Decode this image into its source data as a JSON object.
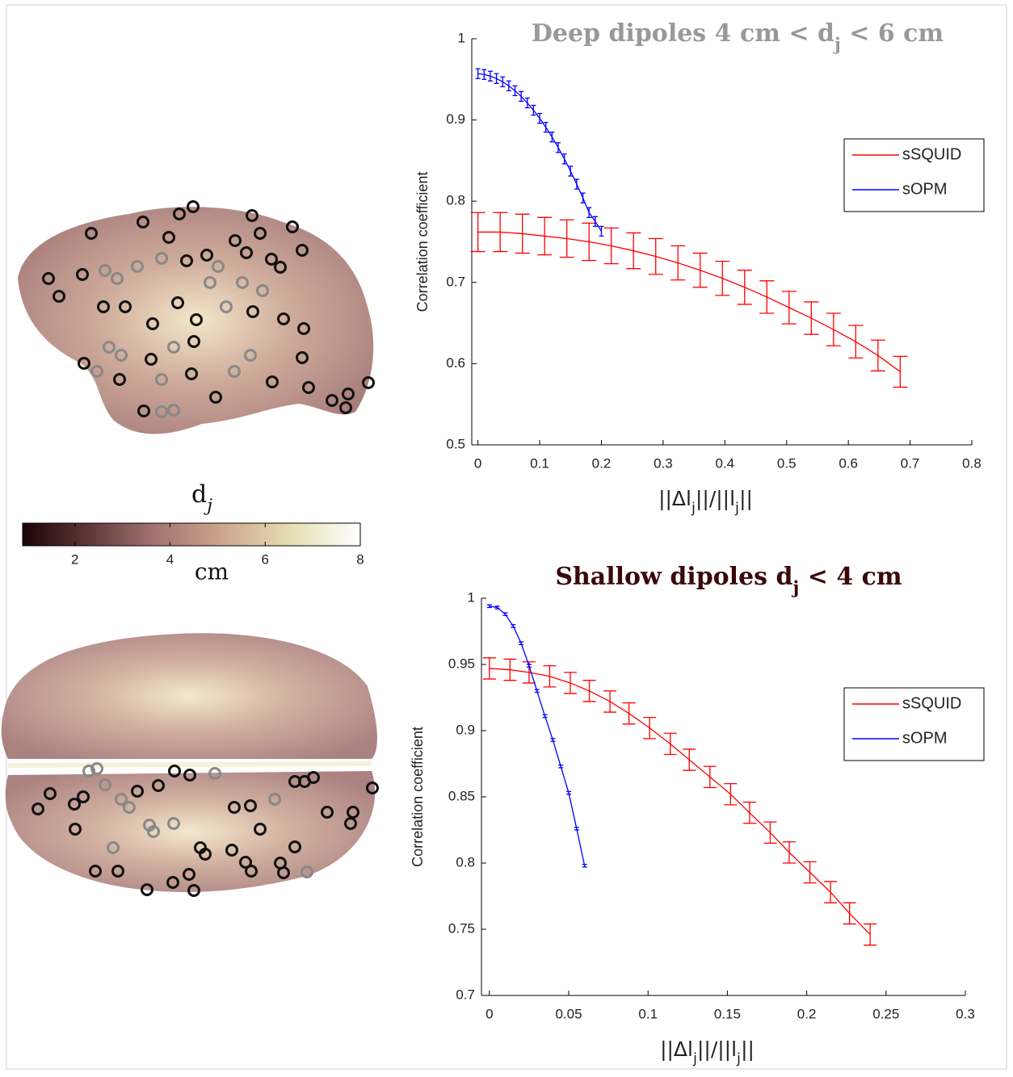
{
  "chart_data": [
    {
      "type": "line",
      "title": [
        "Deep dipoles 4 cm < d",
        "j",
        " < 6 cm"
      ],
      "title_color": "#999999",
      "xlabel": [
        "||Δl",
        "j",
        "||/||l",
        "j",
        "||"
      ],
      "ylabel": "Correlation coefficient",
      "xlim": [
        -0.01,
        0.8
      ],
      "ylim": [
        0.5,
        1
      ],
      "xticks": [
        0,
        0.1,
        0.2,
        0.3,
        0.4,
        0.5,
        0.6,
        0.7,
        0.8
      ],
      "yticks": [
        0.5,
        0.6,
        0.7,
        0.8,
        0.9,
        1
      ],
      "legend": "upper right",
      "series": [
        {
          "name": "sSQUID",
          "color": "#ff0000",
          "x": [
            0,
            0.036,
            0.072,
            0.108,
            0.144,
            0.18,
            0.216,
            0.252,
            0.288,
            0.324,
            0.36,
            0.396,
            0.432,
            0.468,
            0.504,
            0.54,
            0.576,
            0.612,
            0.648,
            0.684
          ],
          "values": [
            0.762,
            0.762,
            0.76,
            0.757,
            0.754,
            0.75,
            0.745,
            0.739,
            0.732,
            0.724,
            0.715,
            0.705,
            0.694,
            0.682,
            0.669,
            0.656,
            0.642,
            0.627,
            0.61,
            0.59
          ],
          "errors": [
            0.024,
            0.024,
            0.024,
            0.023,
            0.023,
            0.023,
            0.022,
            0.022,
            0.022,
            0.021,
            0.021,
            0.021,
            0.021,
            0.02,
            0.02,
            0.02,
            0.02,
            0.02,
            0.019,
            0.019
          ]
        },
        {
          "name": "sOPM",
          "color": "#0000ff",
          "x": [
            0,
            0.01,
            0.02,
            0.03,
            0.04,
            0.05,
            0.06,
            0.07,
            0.08,
            0.09,
            0.1,
            0.11,
            0.12,
            0.13,
            0.14,
            0.15,
            0.16,
            0.17,
            0.18,
            0.19,
            0.2
          ],
          "values": [
            0.957,
            0.956,
            0.954,
            0.951,
            0.947,
            0.942,
            0.936,
            0.929,
            0.921,
            0.912,
            0.902,
            0.891,
            0.879,
            0.866,
            0.852,
            0.837,
            0.821,
            0.804,
            0.786,
            0.775,
            0.763
          ],
          "errors": [
            0.006,
            0.006,
            0.006,
            0.006,
            0.006,
            0.006,
            0.006,
            0.006,
            0.006,
            0.006,
            0.006,
            0.006,
            0.006,
            0.006,
            0.006,
            0.006,
            0.006,
            0.006,
            0.006,
            0.006,
            0.006
          ]
        }
      ]
    },
    {
      "type": "line",
      "title": [
        "Shallow dipoles d",
        "j",
        " < 4 cm"
      ],
      "title_color": "#3a0808",
      "xlabel": [
        "||Δl",
        "j",
        "||/||l",
        "j",
        "||"
      ],
      "ylabel": "Correlation coefficient",
      "xlim": [
        -0.005,
        0.3
      ],
      "ylim": [
        0.7,
        1
      ],
      "xticks": [
        0,
        0.05,
        0.1,
        0.15,
        0.2,
        0.25,
        0.3
      ],
      "yticks": [
        0.7,
        0.75,
        0.8,
        0.85,
        0.9,
        0.95,
        1
      ],
      "legend": "upper right",
      "series": [
        {
          "name": "sSQUID",
          "color": "#ff0000",
          "x": [
            0,
            0.013,
            0.025,
            0.038,
            0.051,
            0.063,
            0.076,
            0.088,
            0.101,
            0.114,
            0.126,
            0.139,
            0.152,
            0.164,
            0.177,
            0.189,
            0.202,
            0.215,
            0.227,
            0.24
          ],
          "values": [
            0.947,
            0.946,
            0.944,
            0.941,
            0.936,
            0.93,
            0.922,
            0.913,
            0.902,
            0.89,
            0.878,
            0.865,
            0.852,
            0.838,
            0.823,
            0.808,
            0.793,
            0.778,
            0.762,
            0.746
          ],
          "errors": [
            0.008,
            0.008,
            0.008,
            0.008,
            0.008,
            0.008,
            0.008,
            0.008,
            0.008,
            0.008,
            0.008,
            0.008,
            0.008,
            0.008,
            0.008,
            0.008,
            0.008,
            0.008,
            0.008,
            0.008
          ]
        },
        {
          "name": "sOPM",
          "color": "#0000ff",
          "x": [
            0,
            0.005,
            0.01,
            0.015,
            0.02,
            0.025,
            0.03,
            0.035,
            0.04,
            0.045,
            0.05,
            0.055,
            0.06
          ],
          "values": [
            0.994,
            0.993,
            0.988,
            0.979,
            0.966,
            0.949,
            0.93,
            0.911,
            0.893,
            0.873,
            0.853,
            0.826,
            0.798
          ],
          "errors": [
            0.001,
            0.001,
            0.001,
            0.001,
            0.001,
            0.001,
            0.001,
            0.001,
            0.001,
            0.001,
            0.001,
            0.001,
            0.001
          ]
        }
      ]
    }
  ],
  "colorbar": {
    "label": [
      "d",
      "j"
    ],
    "unit": "cm",
    "lim": [
      0.9,
      8
    ],
    "ticks": [
      2,
      4,
      6,
      8
    ]
  }
}
